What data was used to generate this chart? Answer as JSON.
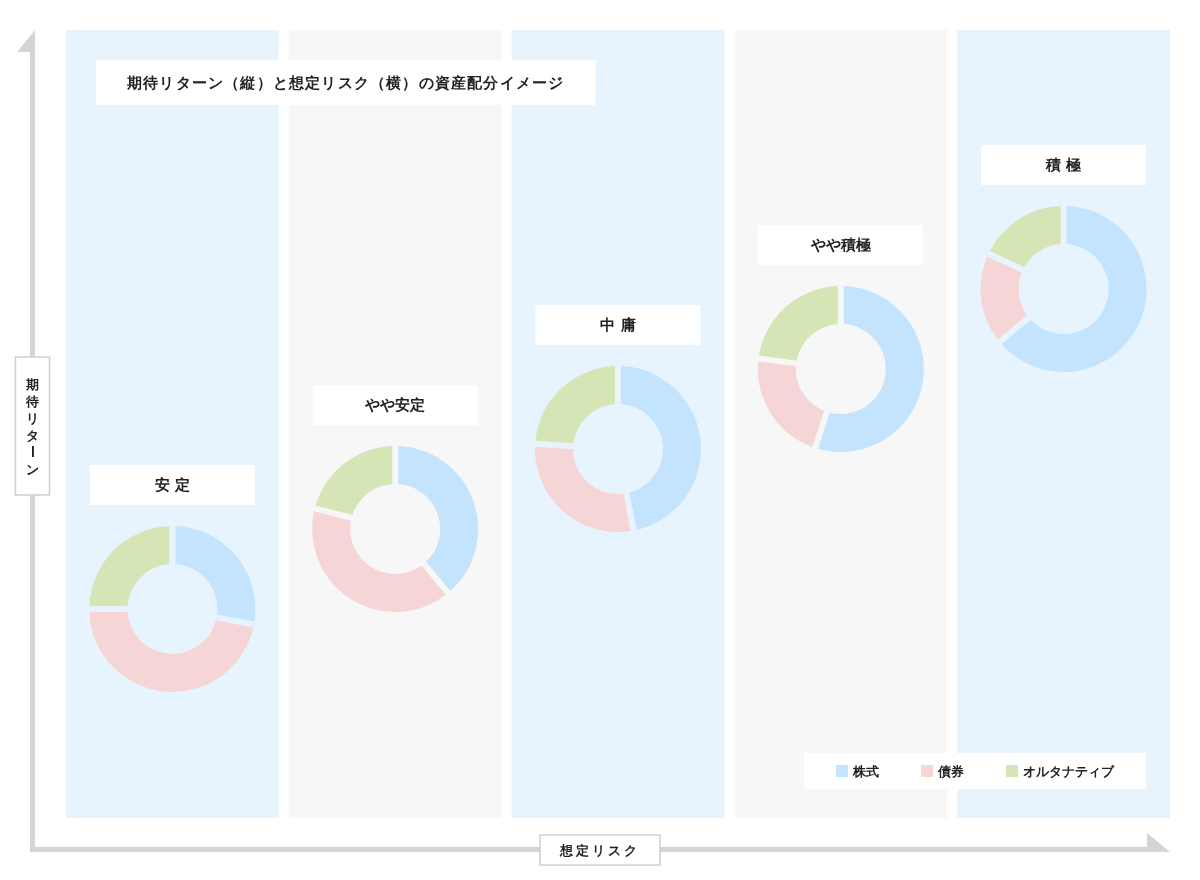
{
  "chart_data": {
    "type": "donut",
    "title": "期待リターン（縦）と想定リスク（横）の資産配分イメージ",
    "xlabel": "想定リスク",
    "ylabel": "期待リターン",
    "categories": [
      "株式",
      "債券",
      "オルタナティブ"
    ],
    "colors": [
      "#c4e3fd",
      "#f5d5d5",
      "#d6e5b5"
    ],
    "series": [
      {
        "name": "安 定",
        "values": [
          28,
          47,
          25
        ]
      },
      {
        "name": "やや安定",
        "values": [
          39,
          40,
          21
        ]
      },
      {
        "name": "中 庸",
        "values": [
          47,
          29,
          24
        ]
      },
      {
        "name": "やや積極",
        "values": [
          55,
          22,
          23
        ]
      },
      {
        "name": "積 極",
        "values": [
          64,
          18,
          18
        ]
      }
    ],
    "legend": "bottom right"
  }
}
